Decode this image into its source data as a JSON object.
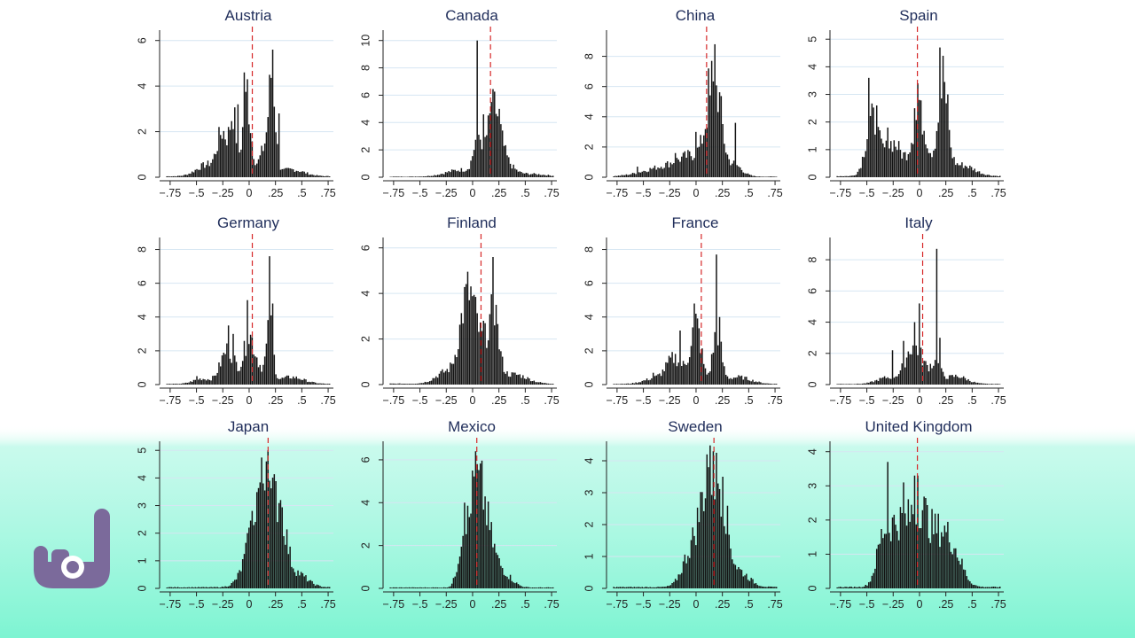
{
  "colors": {
    "bar": "#141414",
    "mean_line": "#d62728",
    "grid": "#d6e6f2",
    "title": "#1f2d5a",
    "overlay": "#8ff5d9",
    "logo": "#7b6a9b"
  },
  "logo": {
    "icon": "rock-hand-icon"
  },
  "chart_data": [
    {
      "type": "bar",
      "title": "Austria",
      "xlim": [
        -0.85,
        0.8
      ],
      "ylim": [
        0,
        6.3
      ],
      "yticks": [
        0,
        2,
        4,
        6
      ],
      "xticks": [
        "-.75",
        "-.5",
        "-.25",
        "0",
        ".25",
        ".5",
        ".75"
      ],
      "mean": 0.03,
      "peaks": [
        [
          -0.25,
          0.05,
          1.8
        ],
        [
          -0.15,
          0.03,
          2.5
        ],
        [
          -0.02,
          0.04,
          3.3
        ],
        [
          0.22,
          0.03,
          4.0
        ],
        [
          0.15,
          0.05,
          1.2
        ],
        [
          -0.4,
          0.1,
          0.5
        ],
        [
          0.4,
          0.12,
          0.3
        ]
      ],
      "spikes": [
        [
          -0.05,
          4.6
        ],
        [
          -0.02,
          4.3
        ],
        [
          0.22,
          5.6
        ],
        [
          0.29,
          2.8
        ],
        [
          -0.1,
          3.2
        ],
        [
          -0.2,
          1.8
        ]
      ]
    },
    {
      "type": "bar",
      "title": "Canada",
      "xlim": [
        -0.85,
        0.8
      ],
      "ylim": [
        0,
        10.5
      ],
      "yticks": [
        0,
        2,
        4,
        6,
        8,
        10
      ],
      "xticks": [
        "-.75",
        "-.5",
        "-.25",
        "0",
        ".25",
        ".5",
        ".75"
      ],
      "mean": 0.17,
      "peaks": [
        [
          0.2,
          0.06,
          4.5
        ],
        [
          0.05,
          0.04,
          2.5
        ],
        [
          0.3,
          0.08,
          1.0
        ],
        [
          -0.1,
          0.15,
          0.5
        ],
        [
          0.55,
          0.15,
          0.2
        ]
      ],
      "spikes": [
        [
          0.05,
          10.0
        ],
        [
          0.2,
          6.3
        ],
        [
          0.1,
          4.6
        ],
        [
          0.18,
          5.5
        ],
        [
          0.25,
          5.0
        ]
      ]
    },
    {
      "type": "bar",
      "title": "China",
      "xlim": [
        -0.85,
        0.8
      ],
      "ylim": [
        0,
        9.5
      ],
      "yticks": [
        0,
        2,
        4,
        6,
        8
      ],
      "xticks": [
        "-.75",
        "-.5",
        "-.25",
        "0",
        ".25",
        ".5",
        ".75"
      ],
      "mean": 0.1,
      "peaks": [
        [
          0.15,
          0.06,
          4.0
        ],
        [
          0.22,
          0.04,
          2.5
        ],
        [
          0.0,
          0.15,
          1.2
        ],
        [
          -0.3,
          0.2,
          0.6
        ],
        [
          0.35,
          0.08,
          0.8
        ]
      ],
      "spikes": [
        [
          0.18,
          8.8
        ],
        [
          0.15,
          7.7
        ],
        [
          0.12,
          7.2
        ],
        [
          0.2,
          4.5
        ],
        [
          0.0,
          3.0
        ],
        [
          -0.2,
          1.6
        ],
        [
          -0.1,
          1.4
        ],
        [
          0.38,
          3.6
        ],
        [
          -0.55,
          0.7
        ],
        [
          0.3,
          1.5
        ]
      ]
    },
    {
      "type": "bar",
      "title": "Spain",
      "xlim": [
        -0.85,
        0.8
      ],
      "ylim": [
        0,
        5.2
      ],
      "yticks": [
        0,
        1,
        2,
        3,
        4,
        5
      ],
      "xticks": [
        "-.75",
        "-.5",
        "-.25",
        "0",
        ".25",
        ".5",
        ".75"
      ],
      "mean": -0.02,
      "peaks": [
        [
          -0.45,
          0.06,
          2.0
        ],
        [
          0.0,
          0.07,
          2.2
        ],
        [
          0.22,
          0.05,
          2.8
        ],
        [
          -0.25,
          0.08,
          1.2
        ],
        [
          0.4,
          0.12,
          0.4
        ]
      ],
      "spikes": [
        [
          -0.48,
          3.6
        ],
        [
          -0.4,
          2.6
        ],
        [
          0.2,
          4.7
        ],
        [
          0.22,
          4.4
        ],
        [
          -0.02,
          3.4
        ],
        [
          0.0,
          2.8
        ],
        [
          0.27,
          3.0
        ],
        [
          -0.3,
          1.8
        ],
        [
          -0.05,
          2.5
        ]
      ]
    },
    {
      "type": "bar",
      "title": "Germany",
      "xlim": [
        -0.85,
        0.8
      ],
      "ylim": [
        0,
        8.5
      ],
      "yticks": [
        0,
        2,
        4,
        6,
        8
      ],
      "xticks": [
        "-.75",
        "-.5",
        "-.25",
        "0",
        ".25",
        ".5",
        ".75"
      ],
      "mean": 0.03,
      "peaks": [
        [
          -0.2,
          0.07,
          2.0
        ],
        [
          0.0,
          0.05,
          2.6
        ],
        [
          0.2,
          0.03,
          3.2
        ],
        [
          0.1,
          0.06,
          0.8
        ],
        [
          0.4,
          0.12,
          0.4
        ],
        [
          -0.45,
          0.08,
          0.3
        ]
      ],
      "spikes": [
        [
          0.2,
          7.6
        ],
        [
          -0.01,
          5.0
        ],
        [
          -0.2,
          3.5
        ],
        [
          0.23,
          4.8
        ],
        [
          -0.15,
          3.0
        ],
        [
          -0.5,
          0.5
        ]
      ]
    },
    {
      "type": "bar",
      "title": "Finland",
      "xlim": [
        -0.85,
        0.8
      ],
      "ylim": [
        0,
        6.3
      ],
      "yticks": [
        0,
        2,
        4,
        6
      ],
      "xticks": [
        "-.75",
        "-.5",
        "-.25",
        "0",
        ".25",
        ".5",
        ".75"
      ],
      "mean": 0.08,
      "peaks": [
        [
          -0.05,
          0.07,
          3.0
        ],
        [
          0.2,
          0.05,
          2.5
        ],
        [
          0.05,
          0.1,
          1.5
        ],
        [
          0.4,
          0.12,
          0.4
        ],
        [
          -0.25,
          0.1,
          0.5
        ]
      ],
      "spikes": [
        [
          0.19,
          5.6
        ],
        [
          -0.05,
          4.6
        ],
        [
          -0.02,
          4.2
        ],
        [
          0.0,
          3.8
        ],
        [
          0.22,
          3.5
        ],
        [
          0.1,
          2.8
        ]
      ]
    },
    {
      "type": "bar",
      "title": "France",
      "xlim": [
        -0.85,
        0.8
      ],
      "ylim": [
        0,
        8.5
      ],
      "yticks": [
        0,
        2,
        4,
        6,
        8
      ],
      "xticks": [
        "-.75",
        "-.5",
        "-.25",
        "0",
        ".25",
        ".5",
        ".75"
      ],
      "mean": 0.05,
      "peaks": [
        [
          -0.2,
          0.08,
          1.5
        ],
        [
          0.0,
          0.05,
          3.5
        ],
        [
          0.2,
          0.04,
          3.0
        ],
        [
          0.4,
          0.12,
          0.4
        ],
        [
          -0.4,
          0.1,
          0.3
        ]
      ],
      "spikes": [
        [
          0.2,
          7.7
        ],
        [
          -0.02,
          4.8
        ],
        [
          -0.15,
          3.2
        ],
        [
          0.22,
          4.0
        ],
        [
          -0.4,
          0.7
        ]
      ]
    },
    {
      "type": "bar",
      "title": "Italy",
      "xlim": [
        -0.85,
        0.8
      ],
      "ylim": [
        0,
        9.2
      ],
      "yticks": [
        0,
        2,
        4,
        6,
        8
      ],
      "xticks": [
        "-.75",
        "-.5",
        "-.25",
        "0",
        ".25",
        ".5",
        ".75"
      ],
      "mean": 0.03,
      "peaks": [
        [
          -0.05,
          0.08,
          2.5
        ],
        [
          0.15,
          0.05,
          1.2
        ],
        [
          0.35,
          0.1,
          0.5
        ],
        [
          -0.3,
          0.1,
          0.4
        ]
      ],
      "spikes": [
        [
          0.17,
          8.7
        ],
        [
          0.0,
          5.2
        ],
        [
          -0.05,
          4.0
        ],
        [
          -0.15,
          2.8
        ],
        [
          0.2,
          3.0
        ],
        [
          -0.25,
          2.2
        ]
      ]
    },
    {
      "type": "bar",
      "title": "Japan",
      "xlim": [
        -0.85,
        0.8
      ],
      "ylim": [
        0,
        5.2
      ],
      "yticks": [
        0,
        1,
        2,
        3,
        4,
        5
      ],
      "xticks": [
        "-.75",
        "-.5",
        "-.25",
        "0",
        ".25",
        ".5",
        ".75"
      ],
      "mean": 0.18,
      "peaks": [
        [
          0.15,
          0.09,
          3.0
        ],
        [
          0.3,
          0.06,
          2.0
        ],
        [
          0.05,
          0.1,
          1.2
        ],
        [
          0.45,
          0.1,
          0.5
        ]
      ],
      "spikes": [
        [
          0.18,
          5.0
        ],
        [
          0.16,
          4.6
        ],
        [
          0.2,
          3.9
        ],
        [
          0.3,
          3.2
        ],
        [
          0.0,
          2.2
        ]
      ]
    },
    {
      "type": "bar",
      "title": "Mexico",
      "xlim": [
        -0.85,
        0.8
      ],
      "ylim": [
        0,
        6.7
      ],
      "yticks": [
        0,
        2,
        4,
        6
      ],
      "xticks": [
        "-.75",
        "-.5",
        "-.25",
        "0",
        ".25",
        ".5",
        ".75"
      ],
      "mean": 0.04,
      "peaks": [
        [
          0.05,
          0.06,
          4.0
        ],
        [
          -0.08,
          0.05,
          2.5
        ],
        [
          0.15,
          0.07,
          2.0
        ],
        [
          0.3,
          0.08,
          0.6
        ]
      ],
      "spikes": [
        [
          0.03,
          6.4
        ],
        [
          0.05,
          5.8
        ],
        [
          0.0,
          5.5
        ],
        [
          -0.08,
          4.0
        ],
        [
          0.08,
          4.8
        ]
      ]
    },
    {
      "type": "bar",
      "title": "Sweden",
      "xlim": [
        -0.85,
        0.8
      ],
      "ylim": [
        0,
        4.5
      ],
      "yticks": [
        0,
        1,
        2,
        3,
        4
      ],
      "xticks": [
        "-.75",
        "-.5",
        "-.25",
        "0",
        ".25",
        ".5",
        ".75"
      ],
      "mean": 0.17,
      "peaks": [
        [
          0.12,
          0.08,
          3.2
        ],
        [
          0.25,
          0.06,
          2.0
        ],
        [
          -0.05,
          0.08,
          1.0
        ],
        [
          0.4,
          0.1,
          0.5
        ]
      ],
      "spikes": [
        [
          0.1,
          4.2
        ],
        [
          0.17,
          4.3
        ],
        [
          0.12,
          3.8
        ],
        [
          0.2,
          3.3
        ],
        [
          0.25,
          3.5
        ]
      ]
    },
    {
      "type": "bar",
      "title": "United Kingdom",
      "xlim": [
        -0.85,
        0.8
      ],
      "ylim": [
        0,
        4.2
      ],
      "yticks": [
        0,
        1,
        2,
        3,
        4
      ],
      "xticks": [
        "-.75",
        "-.5",
        "-.25",
        "0",
        ".25",
        ".5",
        ".75"
      ],
      "mean": -0.02,
      "peaks": [
        [
          -0.2,
          0.1,
          1.8
        ],
        [
          0.0,
          0.08,
          2.0
        ],
        [
          0.2,
          0.1,
          1.5
        ],
        [
          -0.35,
          0.06,
          1.0
        ],
        [
          0.35,
          0.08,
          0.6
        ]
      ],
      "spikes": [
        [
          -0.3,
          3.7
        ],
        [
          -0.05,
          3.3
        ],
        [
          -0.02,
          3.3
        ],
        [
          -0.15,
          3.1
        ],
        [
          0.15,
          2.1
        ]
      ]
    }
  ]
}
